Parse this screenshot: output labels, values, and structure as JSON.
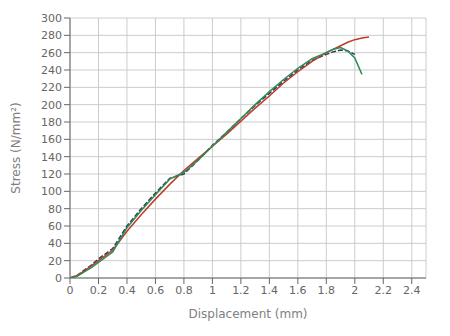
{
  "chart_data": {
    "type": "line",
    "xlabel": "Displacement (mm)",
    "ylabel": "Stress (N/mm²)",
    "xlim": [
      0,
      2.5
    ],
    "ylim": [
      0,
      300
    ],
    "xticks": [
      0,
      0.2,
      0.4,
      0.6,
      0.8,
      1,
      1.2,
      1.4,
      1.6,
      1.8,
      2,
      2.2,
      2.4
    ],
    "yticks": [
      0,
      20,
      40,
      60,
      80,
      100,
      120,
      140,
      160,
      180,
      200,
      220,
      240,
      260,
      280,
      300
    ],
    "grid": true,
    "series": [
      {
        "color": "#2e4053",
        "line_style": "dashed",
        "x": [
          0,
          0.05,
          0.1,
          0.15,
          0.2,
          0.3,
          0.4,
          0.5,
          0.6,
          0.7,
          0.8,
          0.9,
          1.0,
          1.1,
          1.2,
          1.3,
          1.4,
          1.5,
          1.6,
          1.7,
          1.8,
          1.85,
          1.9,
          1.95,
          2.0
        ],
        "values": [
          0,
          3,
          9,
          15,
          22,
          34,
          60,
          80,
          98,
          115,
          120,
          136,
          153,
          168,
          184,
          199,
          213,
          227,
          240,
          251,
          258,
          261,
          263,
          262,
          258
        ]
      },
      {
        "color": "#c0392b",
        "line_style": "solid",
        "x": [
          0,
          0.05,
          0.1,
          0.15,
          0.2,
          0.3,
          0.4,
          0.5,
          0.6,
          0.7,
          0.8,
          0.9,
          1.0,
          1.1,
          1.2,
          1.3,
          1.4,
          1.5,
          1.6,
          1.7,
          1.8,
          1.9,
          1.95,
          2.0,
          2.05,
          2.1
        ],
        "values": [
          0,
          3,
          8,
          14,
          20,
          32,
          54,
          73,
          91,
          108,
          124,
          138,
          152,
          166,
          181,
          196,
          210,
          225,
          238,
          250,
          260,
          268,
          272,
          275,
          277,
          278
        ]
      },
      {
        "color": "#2e8b57",
        "line_style": "solid",
        "x": [
          0,
          0.05,
          0.1,
          0.15,
          0.2,
          0.3,
          0.4,
          0.5,
          0.6,
          0.7,
          0.8,
          0.9,
          1.0,
          1.1,
          1.2,
          1.3,
          1.4,
          1.5,
          1.6,
          1.7,
          1.8,
          1.85,
          1.9,
          1.95,
          2.0,
          2.05
        ],
        "values": [
          0,
          2,
          7,
          12,
          18,
          30,
          58,
          78,
          96,
          114,
          122,
          136,
          152,
          168,
          184,
          200,
          215,
          229,
          242,
          253,
          260,
          264,
          266,
          262,
          254,
          235
        ]
      }
    ]
  }
}
